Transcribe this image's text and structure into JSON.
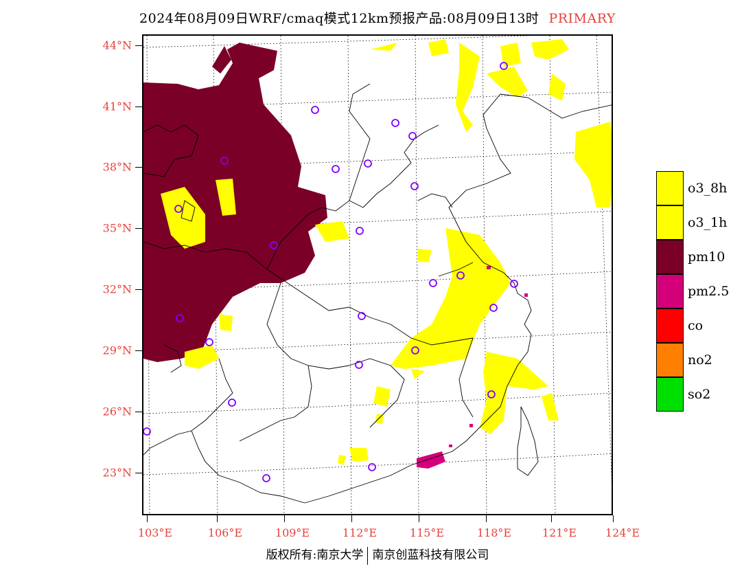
{
  "header": {
    "title": "2024年08月09日WRF/cmaq模式12km预报产品:08月09日13时",
    "tag": "PRIMARY"
  },
  "axes": {
    "latitudes": [
      "44°N",
      "41°N",
      "38°N",
      "35°N",
      "32°N",
      "29°N",
      "26°N",
      "23°N"
    ],
    "longitudes": [
      "103°E",
      "106°E",
      "109°E",
      "112°E",
      "115°E",
      "118°E",
      "121°E",
      "124°E"
    ]
  },
  "legend": [
    {
      "label": "o3_8h",
      "color": "#ffff00"
    },
    {
      "label": "o3_1h",
      "color": "#ffff00"
    },
    {
      "label": "pm10",
      "color": "#7b0027"
    },
    {
      "label": "pm2.5",
      "color": "#d4007a"
    },
    {
      "label": "co",
      "color": "#ff0000"
    },
    {
      "label": "no2",
      "color": "#ff8000"
    },
    {
      "label": "so2",
      "color": "#00e000"
    }
  ],
  "footer": {
    "left": "版权所有:南京大学",
    "right": "南京创蓝科技有限公司"
  },
  "colors": {
    "pm10": "#7b0027",
    "o3": "#ffff00",
    "pm25": "#d4007a",
    "station": "#8000ff",
    "label": "#e8403a"
  }
}
